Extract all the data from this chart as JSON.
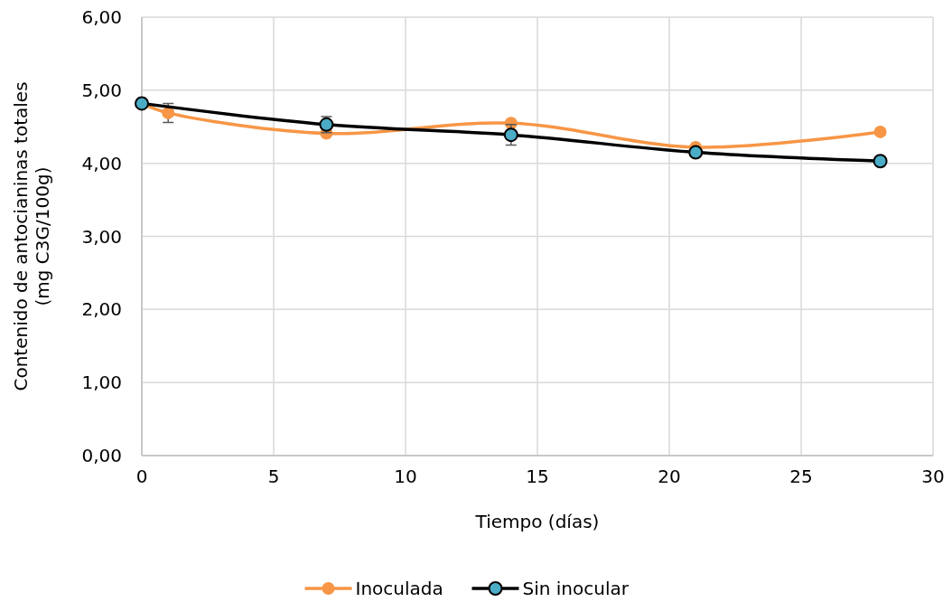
{
  "chart_data": {
    "type": "line",
    "xlabel": "Tiempo (días)",
    "ylabel": "Contenido de antocianinas totales\n(mg C3G/100g)",
    "xlim": [
      0,
      30
    ],
    "xticks": [
      0,
      5,
      10,
      15,
      20,
      25,
      30
    ],
    "ylim": [
      0,
      6
    ],
    "yticks": [
      {
        "value": 0,
        "label": "0,00"
      },
      {
        "value": 1,
        "label": "1,00"
      },
      {
        "value": 2,
        "label": "2,00"
      },
      {
        "value": 3,
        "label": "3,00"
      },
      {
        "value": 4,
        "label": "4,00"
      },
      {
        "value": 5,
        "label": "5,00"
      },
      {
        "value": 6,
        "label": "6,00"
      }
    ],
    "grid": true,
    "legend": "bottom",
    "marker": "circle",
    "series": [
      {
        "name": "Inoculada",
        "color": "#f79646",
        "x": [
          0,
          1,
          7,
          14,
          21,
          28
        ],
        "values": [
          4.82,
          4.69,
          4.41,
          4.55,
          4.22,
          4.43
        ],
        "errors": [
          null,
          0.13,
          null,
          null,
          null,
          null
        ]
      },
      {
        "name": "Sin inocular",
        "color": "#000000",
        "x": [
          0,
          7,
          14,
          21,
          28
        ],
        "values": [
          4.82,
          4.53,
          4.39,
          4.15,
          4.03
        ],
        "errors": [
          null,
          0.11,
          0.14,
          null,
          null
        ]
      }
    ]
  }
}
